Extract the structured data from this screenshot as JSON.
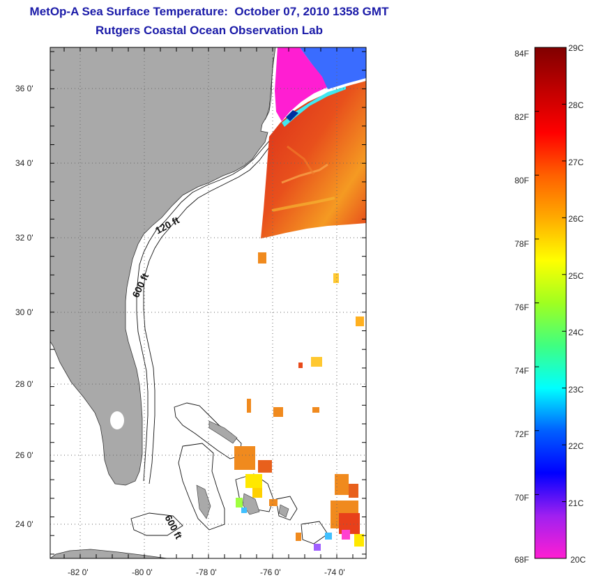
{
  "title": {
    "line1": "MetOp-A Sea Surface Temperature:  October 07, 2010 1358 GMT",
    "line2": "Rutgers Coastal Ocean Observation Lab"
  },
  "map": {
    "lat_labels": [
      "36 0'",
      "34 0'",
      "32 0'",
      "30 0'",
      "28 0'",
      "26 0'",
      "24 0'"
    ],
    "lon_labels": [
      "-82 0'",
      "-80 0'",
      "-78 0'",
      "-76 0'",
      "-74 0'"
    ],
    "contour_labels": [
      "120 ft",
      "600 ft",
      "600 ft"
    ],
    "colors": {
      "land": "#a9a9a9",
      "sea": "#ffffff",
      "sst_warm": "#e63a1a",
      "sst_mid": "#f08a1e",
      "cold_magenta": "#ff1ed2",
      "cold_blue": "#2a6cff"
    }
  },
  "colorbar": {
    "fahrenheit_labels": [
      "84F",
      "82F",
      "80F",
      "78F",
      "76F",
      "74F",
      "72F",
      "70F",
      "68F"
    ],
    "celsius_labels": [
      "29C",
      "28C",
      "27C",
      "26C",
      "25C",
      "24C",
      "23C",
      "22C",
      "21C",
      "20C"
    ],
    "range_c": [
      20,
      29
    ],
    "range_f": [
      68,
      84
    ],
    "gradient_stops": [
      "#ff1ed2",
      "#a020f0",
      "#0000ff",
      "#0060ff",
      "#00ffff",
      "#40ff80",
      "#a0ff20",
      "#ffff00",
      "#ffaa00",
      "#ff6000",
      "#ff0000",
      "#c00000",
      "#800000"
    ]
  }
}
